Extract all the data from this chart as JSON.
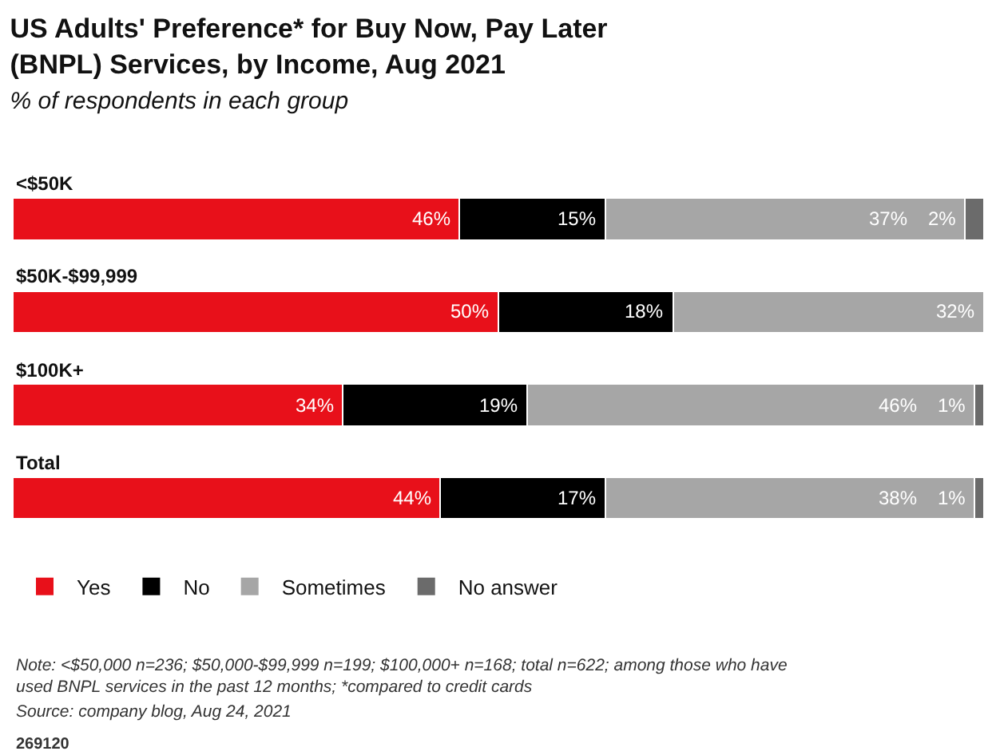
{
  "chart_data": {
    "type": "bar",
    "orientation": "horizontal",
    "stacked": true,
    "legend": "bottom left",
    "grid": false,
    "title": "US Adults' Preference* for Buy Now, Pay Later (BNPL) Services, by Income, Aug 2021",
    "subtitle": "% of respondents in each group",
    "categories": [
      "<$50K",
      "$50K-$99,999",
      "$100K+",
      "Total"
    ],
    "series": [
      {
        "name": "Yes",
        "color": "#e8101a",
        "values": [
          46,
          50,
          34,
          44
        ],
        "value_labels": [
          "46%",
          "50%",
          "34%",
          "44%"
        ]
      },
      {
        "name": "No",
        "color": "#000000",
        "values": [
          15,
          18,
          19,
          17
        ],
        "value_labels": [
          "15%",
          "18%",
          "19%",
          "17%"
        ]
      },
      {
        "name": "Sometimes",
        "color": "#a6a6a6",
        "values": [
          37,
          32,
          46,
          38
        ],
        "value_labels": [
          "37%",
          "32%",
          "46%",
          "38%"
        ]
      },
      {
        "name": "No answer",
        "color": "#6b6b6b",
        "values": [
          2,
          null,
          1,
          1
        ],
        "value_labels": [
          "2%",
          null,
          "1%",
          "1%"
        ]
      }
    ],
    "annotations": [
      "Note: <$50,000 n=236; $50,000-$99,999 n=199; $100,000+ n=168; total n=622; among those who have used BNPL services in the past 12 months; *compared to credit cards",
      "Source: company blog, Aug 24, 2021",
      "269120"
    ]
  }
}
